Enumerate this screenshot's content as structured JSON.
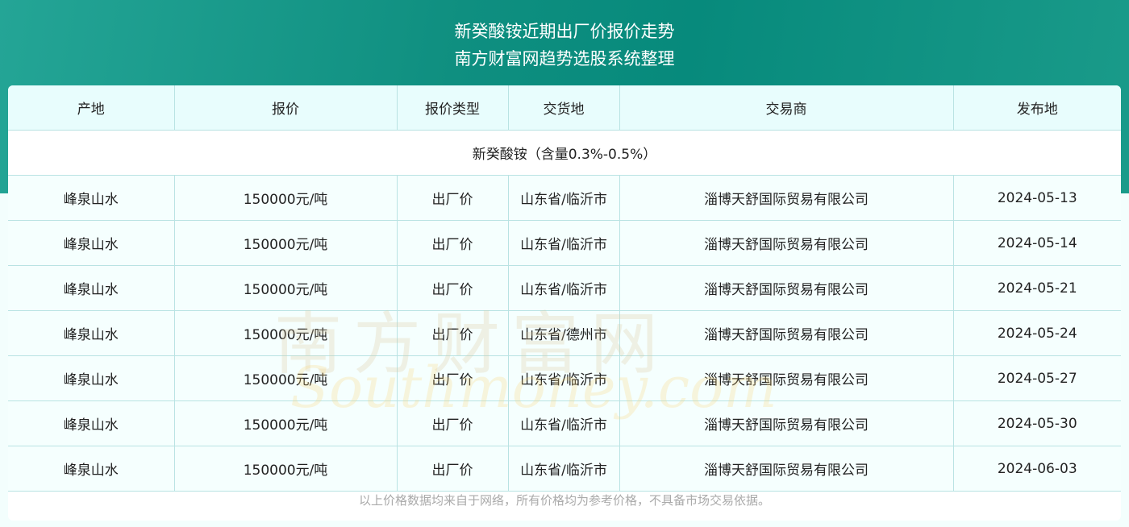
{
  "header": {
    "title": "新癸酸铵近期出厂价报价走势",
    "subtitle": "南方财富网趋势选股系统整理"
  },
  "table": {
    "columns": [
      "产地",
      "报价",
      "报价类型",
      "交货地",
      "交易商",
      "发布地"
    ],
    "group": "新癸酸铵（含量0.3%-0.5%）",
    "rows": [
      [
        "峰泉山水",
        "150000元/吨",
        "出厂价",
        "山东省/临沂市",
        "淄博天舒国际贸易有限公司",
        "2024-05-13"
      ],
      [
        "峰泉山水",
        "150000元/吨",
        "出厂价",
        "山东省/临沂市",
        "淄博天舒国际贸易有限公司",
        "2024-05-14"
      ],
      [
        "峰泉山水",
        "150000元/吨",
        "出厂价",
        "山东省/临沂市",
        "淄博天舒国际贸易有限公司",
        "2024-05-21"
      ],
      [
        "峰泉山水",
        "150000元/吨",
        "出厂价",
        "山东省/德州市",
        "淄博天舒国际贸易有限公司",
        "2024-05-24"
      ],
      [
        "峰泉山水",
        "150000元/吨",
        "出厂价",
        "山东省/临沂市",
        "淄博天舒国际贸易有限公司",
        "2024-05-27"
      ],
      [
        "峰泉山水",
        "150000元/吨",
        "出厂价",
        "山东省/临沂市",
        "淄博天舒国际贸易有限公司",
        "2024-05-30"
      ],
      [
        "峰泉山水",
        "150000元/吨",
        "出厂价",
        "山东省/临沂市",
        "淄博天舒国际贸易有限公司",
        "2024-06-03"
      ]
    ]
  },
  "footer": {
    "note": "以上价格数据均来自于网络，所有价格均为参考价格，不具备市场交易依据。"
  },
  "watermark": {
    "cn": "南方财富网",
    "en": "Southmoney.com"
  },
  "colors": {
    "banner": "#0f8f80",
    "header_bg": "#e8fdfd",
    "border": "#b9e3e3"
  }
}
